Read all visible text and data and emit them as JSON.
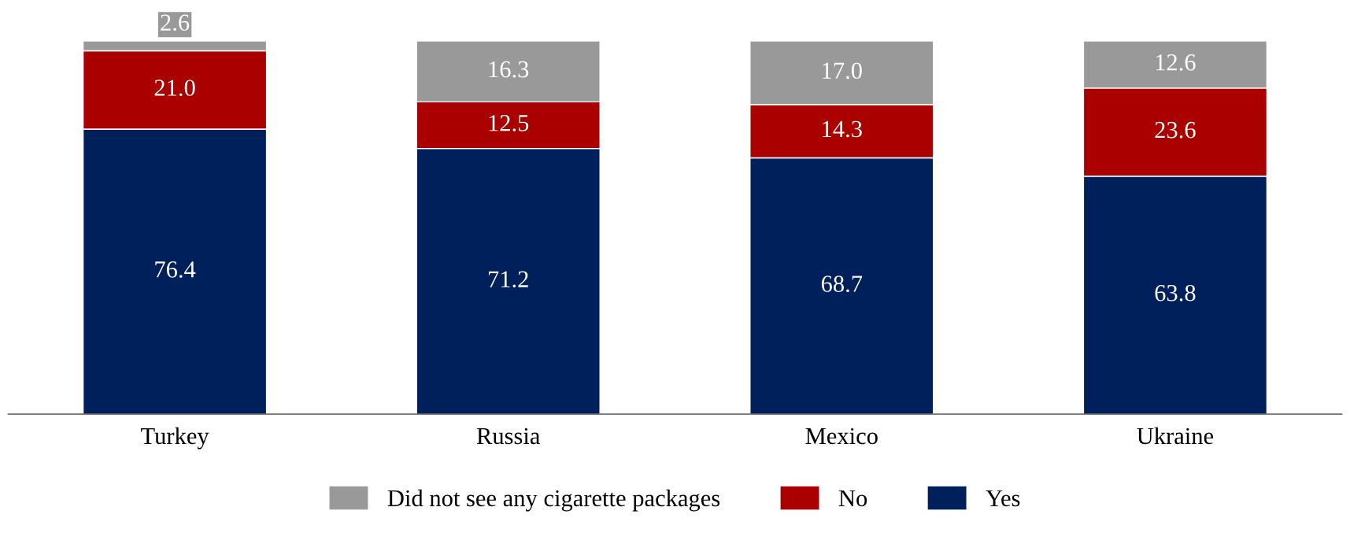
{
  "chart_data": {
    "type": "bar",
    "stacked": true,
    "categories": [
      "Turkey",
      "Russia",
      "Mexico",
      "Ukraine"
    ],
    "series": [
      {
        "name": "Yes",
        "color": "#00205b",
        "values": [
          76.4,
          71.2,
          68.7,
          63.8
        ],
        "value_labels": [
          "76.4",
          "71.2",
          "68.7",
          "63.8"
        ]
      },
      {
        "name": "No",
        "color": "#aa0000",
        "values": [
          21.0,
          12.5,
          14.3,
          23.6
        ],
        "value_labels": [
          "21.0",
          "12.5",
          "14.3",
          "23.6"
        ]
      },
      {
        "name": "Did not see any cigarette packages",
        "color": "#999999",
        "values": [
          2.6,
          16.3,
          17.0,
          12.6
        ],
        "value_labels": [
          "2.6",
          "16.3",
          "17.0",
          "12.6"
        ]
      }
    ],
    "legend": "bottom"
  }
}
